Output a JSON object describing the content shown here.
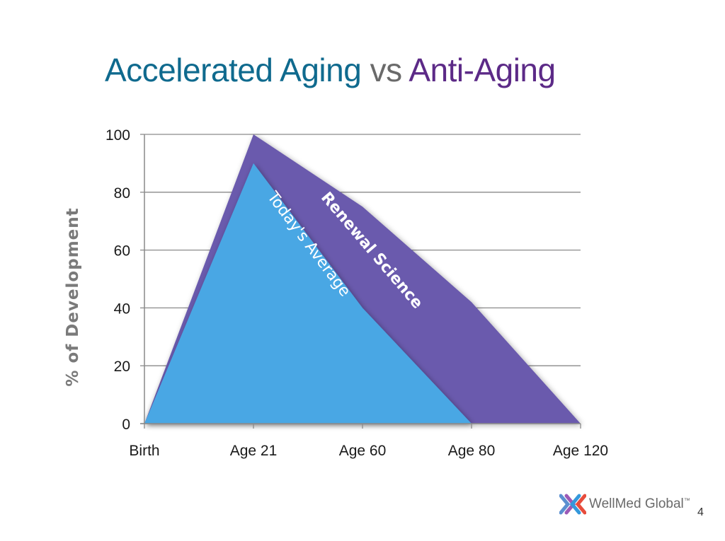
{
  "slide": {
    "title_part1": "Accelerated Aging",
    "title_part2": " vs ",
    "title_part3": "Anti-Aging",
    "page_number": "4"
  },
  "logo": {
    "text": "WellMed Global",
    "trademark": "™"
  },
  "colors": {
    "title_blue": "#0f6a8e",
    "title_purple": "#5c2a87",
    "renewal_purple": "#6a5aad",
    "average_blue": "#4aa7e4"
  },
  "chart_data": {
    "type": "area",
    "categories": [
      "Birth",
      "Age 21",
      "Age 60",
      "Age 80",
      "Age 120"
    ],
    "ylabel": "% of Development",
    "ylim": [
      0,
      100
    ],
    "yticks": [
      "0",
      "20",
      "40",
      "60",
      "80",
      "100"
    ],
    "grid": true,
    "series": [
      {
        "name": "Renewal Science",
        "values": [
          0,
          100,
          75,
          42,
          0
        ],
        "color": "#6a5aad"
      },
      {
        "name": "Today's Average",
        "values": [
          0,
          90,
          40,
          0,
          0
        ],
        "color": "#4aa7e4"
      }
    ]
  }
}
